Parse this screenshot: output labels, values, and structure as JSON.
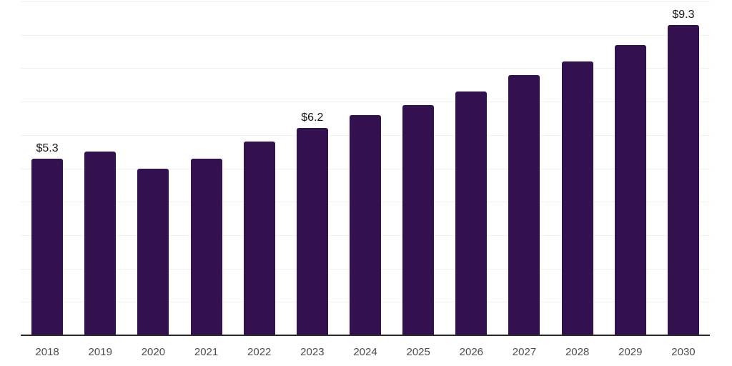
{
  "chart_data": {
    "type": "bar",
    "title": "",
    "xlabel": "",
    "ylabel": "",
    "categories": [
      "2018",
      "2019",
      "2020",
      "2021",
      "2022",
      "2023",
      "2024",
      "2025",
      "2026",
      "2027",
      "2028",
      "2029",
      "2030"
    ],
    "values": [
      5.3,
      5.5,
      5.0,
      5.3,
      5.8,
      6.2,
      6.6,
      6.9,
      7.3,
      7.8,
      8.2,
      8.7,
      9.3
    ],
    "value_labels": {
      "2018": "$5.3",
      "2023": "$6.2",
      "2030": "$9.3"
    },
    "ylim": [
      0,
      10
    ],
    "gridline_step": 1,
    "grid": "horizontal-only",
    "legend": "none",
    "y_axis_ticks_visible": false,
    "colors": {
      "bar": "#33114E",
      "gridline": "#F1F1F1",
      "axis_line": "#2B2B2B",
      "tick_label": "#4D4D4D",
      "data_label": "#141414",
      "background": "#FFFFFF"
    }
  }
}
